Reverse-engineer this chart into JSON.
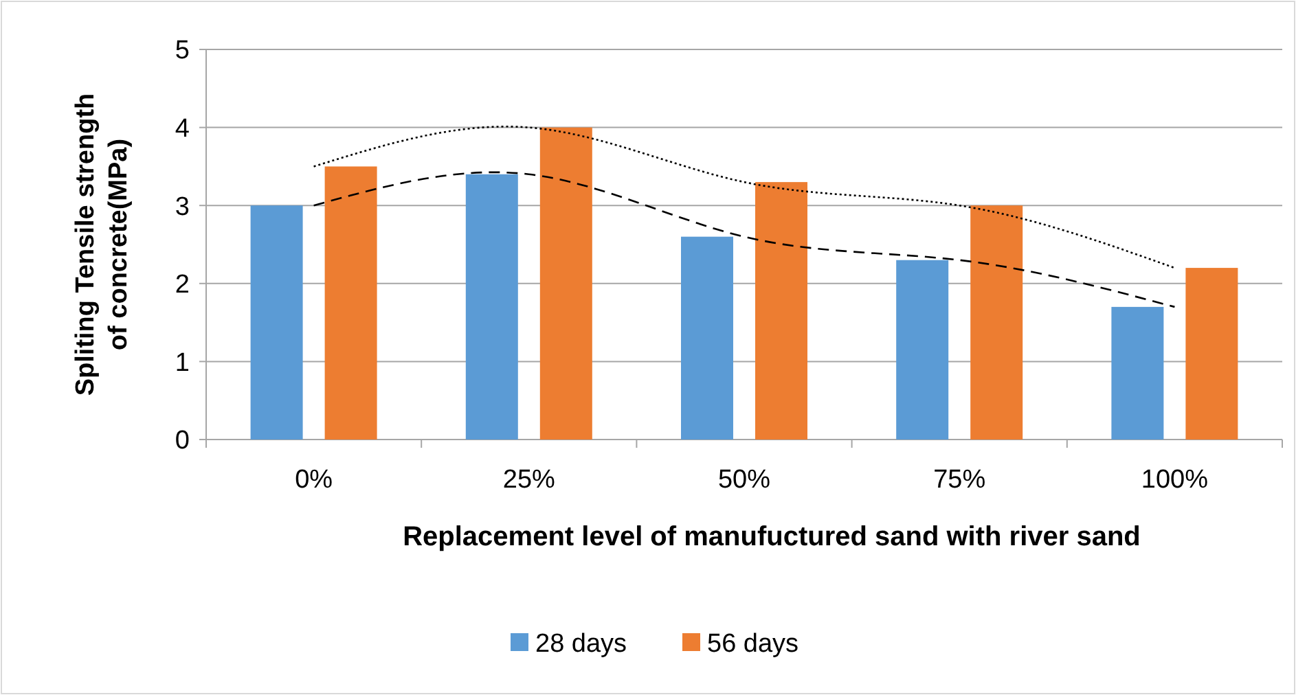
{
  "chart_data": {
    "type": "bar",
    "xlabel": "Replacement level of manufuctured sand with  river sand",
    "ylabel": "Spliting Tensile strength of concrete(MPa)",
    "categories": [
      "0%",
      "25%",
      "50%",
      "75%",
      "100%"
    ],
    "series": [
      {
        "name": "28 days",
        "color": "#5b9bd5",
        "values": [
          3,
          3.4,
          2.6,
          2.3,
          1.7
        ]
      },
      {
        "name": "56 days",
        "color": "#ed7d31",
        "values": [
          3.5,
          4,
          3.3,
          3,
          2.2
        ]
      },
      {
        "type": "line",
        "color": "#000000",
        "line_style": "dashed",
        "marker": "none",
        "values": [
          3,
          3.4,
          2.6,
          2.3,
          1.7
        ]
      },
      {
        "type": "line",
        "color": "#000000",
        "line_style": "dotted",
        "marker": "none",
        "values": [
          3.5,
          4,
          3.3,
          3,
          2.2
        ]
      }
    ],
    "ylim": [
      0,
      5
    ],
    "yticks": [
      0,
      1,
      2,
      3,
      4,
      5
    ],
    "grid": "y",
    "legend": "bottom"
  }
}
